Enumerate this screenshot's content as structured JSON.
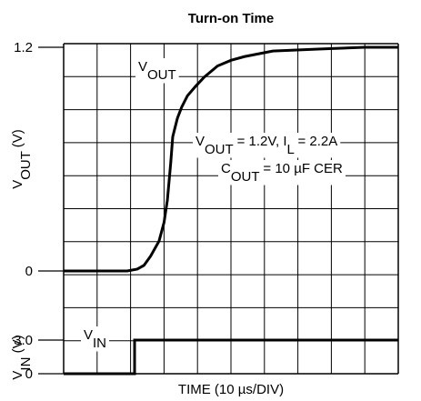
{
  "chart_data": [
    {
      "type": "line",
      "title": "Turn-on Time",
      "ylabel": [
        {
          "text": "V"
        },
        {
          "text": "OUT",
          "sub": true
        },
        {
          "text": " (V)"
        }
      ],
      "xlim": [
        0,
        100
      ],
      "ylim": [
        0,
        1.2
      ],
      "yticks": [
        0,
        1.2
      ],
      "color": "#000000",
      "x": [
        0,
        19,
        22,
        24,
        26,
        28.5,
        30,
        31,
        32,
        32.6,
        34,
        35.3,
        37,
        39.4,
        42,
        46,
        50,
        54,
        62.5,
        76,
        90,
        100
      ],
      "values": [
        0,
        0,
        0.01,
        0.03,
        0.08,
        0.16,
        0.26,
        0.38,
        0.58,
        0.72,
        0.82,
        0.88,
        0.94,
        0.99,
        1.04,
        1.1,
        1.13,
        1.15,
        1.18,
        1.19,
        1.2,
        1.2
      ],
      "annotations": [
        [
          {
            "text": "V"
          },
          {
            "text": "OUT",
            "sub": true
          }
        ],
        [
          {
            "text": "V"
          },
          {
            "text": "OUT",
            "sub": true
          },
          {
            "text": " = 1.2V, I"
          },
          {
            "text": "L",
            "sub": true
          },
          {
            "text": " = 2.2A"
          }
        ],
        [
          {
            "text": "C"
          },
          {
            "text": "OUT",
            "sub": true
          },
          {
            "text": " = 10 µF CER"
          }
        ]
      ]
    },
    {
      "type": "line",
      "xlabel": "TIME (10 µs/DIV)",
      "ylabel": [
        {
          "text": "V"
        },
        {
          "text": "IN",
          "sub": true
        },
        {
          "text": " (V)"
        }
      ],
      "xlim": [
        0,
        100
      ],
      "ylim": [
        0,
        3
      ],
      "yticks": [
        0,
        {
          "value": 3,
          "label": "3.0"
        }
      ],
      "color": "#000000",
      "x": [
        0,
        21.2,
        21.2,
        100
      ],
      "values": [
        0,
        0,
        3,
        3
      ],
      "annotations": [
        [
          {
            "text": "V"
          },
          {
            "text": "IN",
            "sub": true
          }
        ]
      ]
    }
  ]
}
